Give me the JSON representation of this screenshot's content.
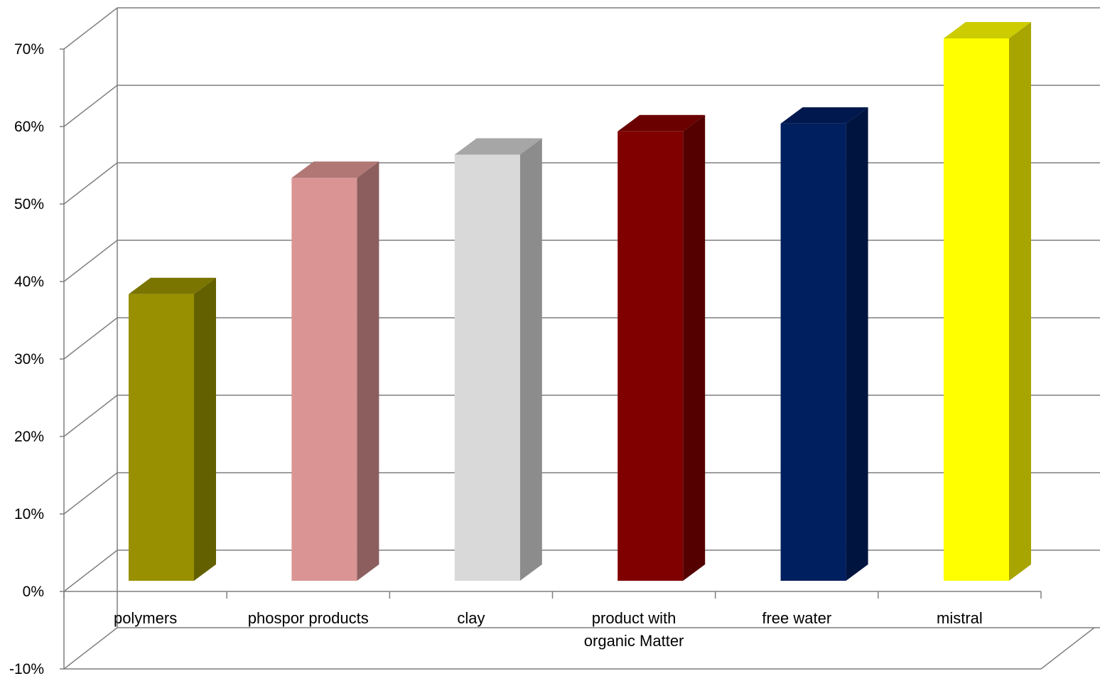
{
  "chart_data": {
    "type": "bar",
    "style": "3d-column",
    "categories": [
      [
        "polymers"
      ],
      [
        "phospor products"
      ],
      [
        "clay"
      ],
      [
        "product with",
        "organic Matter"
      ],
      [
        "free water"
      ],
      [
        "mistral"
      ]
    ],
    "values": [
      37,
      52,
      55,
      58,
      59,
      70
    ],
    "unit": "%",
    "ylim": [
      -10,
      70
    ],
    "yticks": [
      -10,
      0,
      10,
      20,
      30,
      40,
      50,
      60,
      70
    ],
    "ytick_labels": [
      "-10%",
      "0%",
      "10%",
      "20%",
      "30%",
      "40%",
      "50%",
      "60%",
      "70%"
    ],
    "grid": true,
    "legend": "none",
    "bar_colors": [
      {
        "front": "#989000",
        "side": "#636000",
        "top": "#7a7400"
      },
      {
        "front": "#d99493",
        "side": "#8c5e5e",
        "top": "#b07775"
      },
      {
        "front": "#d9d9d9",
        "side": "#8c8c8c",
        "top": "#a6a6a6"
      },
      {
        "front": "#800000",
        "side": "#540000",
        "top": "#6a0000"
      },
      {
        "front": "#001f5e",
        "side": "#001440",
        "top": "#00184d"
      },
      {
        "front": "#ffff00",
        "side": "#a8a500",
        "top": "#cccc00"
      }
    ],
    "gridline_color": "#7f7f7f"
  }
}
